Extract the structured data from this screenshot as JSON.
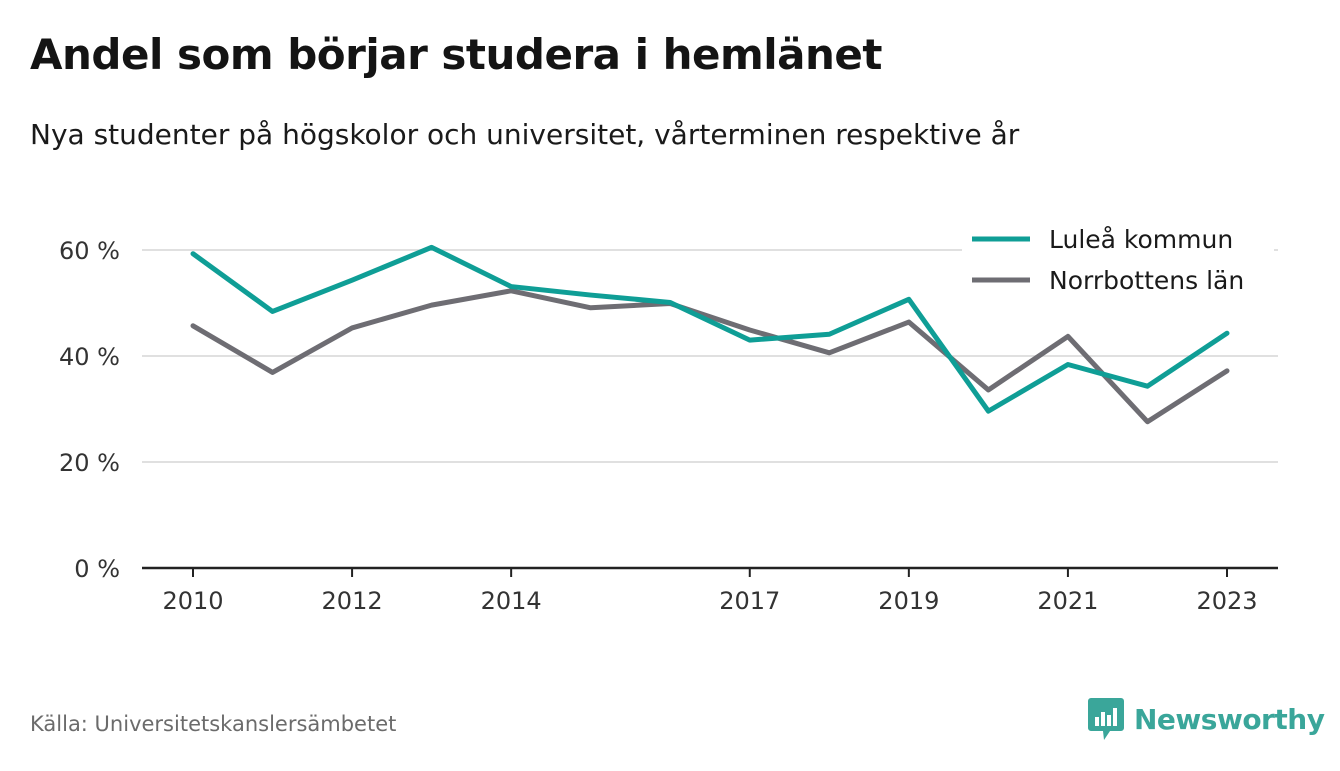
{
  "header": {
    "title": "Andel som börjar studera i hemlänet",
    "subtitle": "Nya studenter på högskolor och universitet, vårterminen respektive år"
  },
  "footer": {
    "source": "Källa: Universitetskanslersämbetet",
    "brand": "Newsworthy"
  },
  "colors": {
    "lulea": "#0f9e96",
    "norrbotten": "#6e6d73",
    "grid": "#d6d6d6",
    "axis": "#222222",
    "brand": "#3aa69a"
  },
  "chart_data": {
    "type": "line",
    "x": [
      2010,
      2011,
      2012,
      2013,
      2014,
      2015,
      2016,
      2017,
      2018,
      2019,
      2020,
      2021,
      2022,
      2023
    ],
    "x_ticks": [
      "2010",
      "2012",
      "2014",
      "2017",
      "2019",
      "2021",
      "2023"
    ],
    "y_ticks": [
      "0 %",
      "20 %",
      "40 %",
      "60 %"
    ],
    "ylim": [
      0,
      65
    ],
    "unit": "%",
    "grid": true,
    "legend_position": "top-right",
    "series": [
      {
        "name": "Luleå kommun",
        "values": [
          59.3,
          48.4,
          54.3,
          60.5,
          53.1,
          51.5,
          50.1,
          43.0,
          44.1,
          50.7,
          29.6,
          38.4,
          34.3,
          44.3
        ]
      },
      {
        "name": "Norrbottens län",
        "values": [
          45.7,
          36.9,
          45.3,
          49.6,
          52.3,
          49.1,
          49.9,
          44.9,
          40.6,
          46.4,
          33.6,
          43.7,
          27.6,
          37.2
        ]
      }
    ]
  }
}
